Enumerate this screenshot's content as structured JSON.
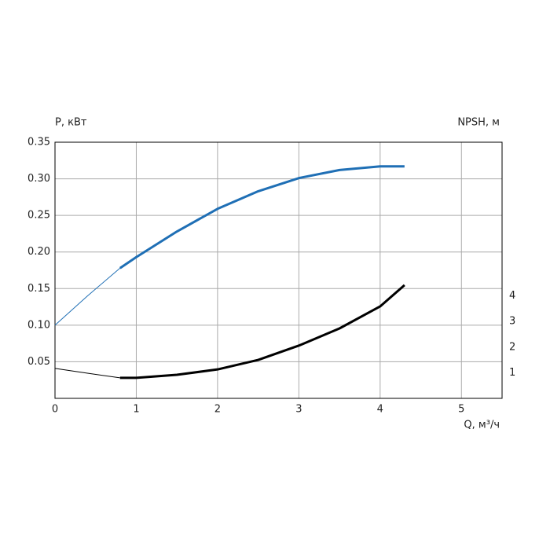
{
  "chart_data": {
    "type": "line",
    "y_label": "P, кВт",
    "y2_label": "NPSH, м",
    "x_label": "Q, м³/ч",
    "x": [
      0,
      0.4,
      0.8,
      1,
      1.5,
      2,
      2.5,
      3,
      3.5,
      4,
      4.3
    ],
    "series": [
      {
        "color": "#1f6fb5",
        "line_width": 1,
        "values": [
          0.1,
          0.14,
          0.178,
          null,
          null,
          null,
          null,
          null,
          null,
          null,
          null
        ]
      },
      {
        "color": "#1f6fb5",
        "line_width": 3,
        "values": [
          null,
          null,
          0.178,
          0.193,
          0.228,
          0.259,
          0.283,
          0.301,
          0.312,
          0.317,
          0.317
        ]
      },
      {
        "color": "#000000",
        "line_width": 1,
        "axis": "y2",
        "values": [
          1.17,
          0.98,
          0.8,
          null,
          null,
          null,
          null,
          null,
          null,
          null,
          null
        ]
      },
      {
        "color": "#000000",
        "line_width": 3,
        "axis": "y2",
        "values": [
          null,
          null,
          0.8,
          0.8,
          0.92,
          1.13,
          1.5,
          2.06,
          2.73,
          3.59,
          4.42
        ]
      }
    ],
    "xlim": [
      0,
      5.5
    ],
    "xticks": [
      0,
      1,
      2,
      3,
      4,
      5
    ],
    "ylim": [
      0,
      0.35
    ],
    "yticks": [
      0.05,
      {
        "value": 0.1,
        "label": "0.10"
      },
      0.15,
      {
        "value": 0.2,
        "label": "0.20"
      },
      0.25,
      {
        "value": 0.3,
        "label": "0.30"
      },
      0.35
    ],
    "y2lim": [
      0,
      10
    ],
    "y2ticks": [
      1,
      2,
      3,
      4
    ],
    "grid": true
  }
}
